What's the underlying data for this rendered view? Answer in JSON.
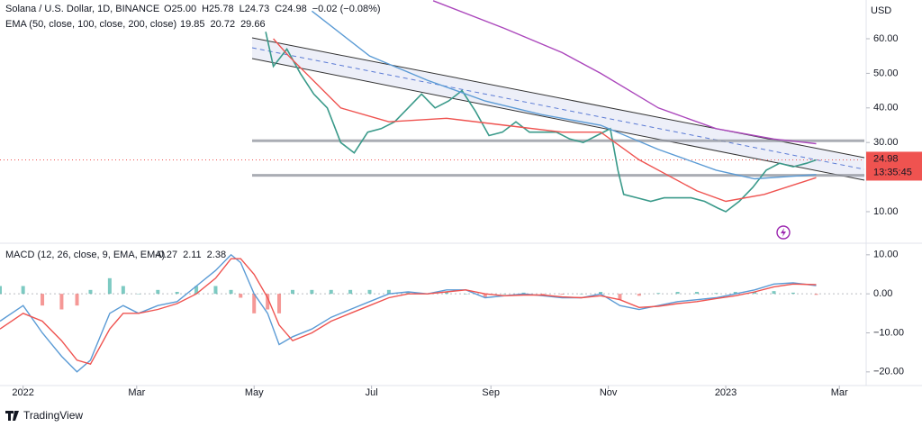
{
  "header": {
    "symbol": "Solana / U.S. Dollar, 1D, BINANCE",
    "ohlc": [
      "O25.00",
      "H25.78",
      "L24.73",
      "C24.98",
      "−0.02 (−0.08%)"
    ]
  },
  "chart_data": [
    {
      "type": "line",
      "axis_label": "USD",
      "xlim": [
        -12,
        437
      ],
      "ylim": [
        1.4,
        71.2
      ],
      "yticks": [
        {
          "value": 10,
          "label": "10.00"
        },
        {
          "value": 20,
          "label": "20.00"
        },
        {
          "value": 30,
          "label": "30.00"
        },
        {
          "value": 40,
          "label": "40.00"
        },
        {
          "value": 50,
          "label": "50.00"
        },
        {
          "value": 60,
          "label": "60.00"
        }
      ],
      "legend": {
        "label": "EMA (50, close, 100, close, 200, close)",
        "values": [
          19.85,
          20.72,
          29.66
        ]
      },
      "levels": [
        30.5,
        20.5
      ],
      "last_price": 24.98,
      "countdown": "13:35:45",
      "series": [
        {
          "color": "#3a9a8a",
          "x": [
            126,
            130,
            137,
            144,
            151,
            158,
            165,
            172,
            179,
            186,
            193,
            200,
            207,
            214,
            221,
            228,
            235,
            242,
            249,
            256,
            263,
            270,
            277,
            284,
            291,
            298,
            305,
            309,
            312,
            319,
            326,
            333,
            340,
            347,
            354,
            361,
            365,
            372,
            379,
            386,
            393,
            400,
            407,
            412
          ],
          "values": [
            62,
            52,
            57,
            50,
            44,
            40,
            30,
            27,
            33,
            34,
            36,
            40,
            44,
            40,
            42,
            45,
            39,
            32,
            33,
            36,
            33,
            33,
            33,
            31,
            30,
            32,
            34,
            22,
            15,
            14,
            13,
            14,
            14,
            14,
            13,
            11,
            10,
            13,
            17,
            22,
            24,
            23,
            24,
            24.98
          ]
        },
        {
          "color": "#ef5350",
          "x": [
            130,
            138,
            165,
            190,
            220,
            250,
            280,
            300,
            320,
            350,
            365,
            385,
            412
          ],
          "values": [
            60,
            55,
            40,
            36,
            37,
            35,
            33,
            33,
            25,
            16,
            13,
            15,
            19.85
          ]
        },
        {
          "color": "#5b9bd5",
          "x": [
            150,
            180,
            210,
            240,
            270,
            300,
            330,
            360,
            380,
            412
          ],
          "values": [
            68,
            55,
            48,
            42,
            38,
            35,
            28,
            22,
            19.5,
            20.72
          ]
        },
        {
          "color": "#ab47bc",
          "x": [
            213,
            250,
            280,
            300,
            330,
            360,
            390,
            412
          ],
          "values": [
            71,
            63,
            56,
            50,
            40,
            34,
            31,
            29.66
          ]
        }
      ]
    },
    {
      "type": "macd",
      "xlim": [
        -12,
        437
      ],
      "ylim": [
        -23.5,
        12.5
      ],
      "yticks": [
        {
          "value": 10,
          "label": "10.00"
        },
        {
          "value": 0,
          "label": "0.00"
        },
        {
          "value": -10,
          "label": "−10.00"
        },
        {
          "value": -20,
          "label": "−20.00"
        }
      ],
      "xticks": [
        {
          "value": 0,
          "label": "2022"
        },
        {
          "value": 59,
          "label": "Mar"
        },
        {
          "value": 120,
          "label": "May"
        },
        {
          "value": 181,
          "label": "Jul"
        },
        {
          "value": 243,
          "label": "Sep"
        },
        {
          "value": 304,
          "label": "Nov"
        },
        {
          "value": 365,
          "label": "2023"
        },
        {
          "value": 424,
          "label": "Mar"
        }
      ],
      "legend": {
        "label": "MACD (12, 26, close, 9, EMA, EMA)",
        "values": [
          -0.27,
          2.11,
          2.38
        ]
      },
      "x": [
        -12,
        0,
        10,
        20,
        28,
        35,
        45,
        52,
        60,
        70,
        80,
        90,
        100,
        108,
        113,
        120,
        127,
        133,
        140,
        150,
        160,
        170,
        180,
        190,
        200,
        210,
        220,
        230,
        240,
        250,
        260,
        270,
        280,
        290,
        300,
        310,
        320,
        330,
        340,
        350,
        360,
        370,
        380,
        390,
        400,
        412
      ],
      "histogram": [
        2,
        2,
        -3,
        -4,
        -3,
        1,
        4,
        2,
        0,
        1,
        0.5,
        2,
        2,
        1,
        -1,
        -5,
        -4,
        -5,
        1,
        1,
        1,
        1,
        1,
        1,
        0.5,
        0,
        0.5,
        0,
        -1,
        0,
        0.3,
        -0.2,
        -0.2,
        0,
        0.5,
        -1.5,
        -0.5,
        0.2,
        0.5,
        0.5,
        0.2,
        0.5,
        0.5,
        0.7,
        0.3,
        -0.27
      ],
      "series": [
        {
          "color": "#5b9bd5",
          "values": [
            -7,
            -3,
            -10,
            -16,
            -20,
            -17,
            -5,
            -3,
            -5,
            -3,
            -2,
            2,
            6,
            10,
            8,
            0,
            -5,
            -13,
            -11,
            -9,
            -6,
            -4,
            -2,
            0,
            0.5,
            0,
            1,
            1,
            -1,
            -0.5,
            0,
            -0.5,
            -1,
            -1,
            0,
            -3,
            -4,
            -3,
            -2,
            -1.5,
            -1,
            0,
            1,
            2.5,
            2.8,
            2.11
          ]
        },
        {
          "color": "#ef5350",
          "values": [
            -9,
            -5,
            -7,
            -12,
            -17,
            -18,
            -9,
            -5,
            -5,
            -4,
            -2.5,
            0,
            4,
            9,
            9,
            5,
            -1,
            -8,
            -12,
            -10,
            -7,
            -5,
            -3,
            -1,
            0,
            0,
            0.5,
            1,
            0,
            -0.5,
            -0.3,
            -0.3,
            -0.8,
            -1,
            -0.5,
            -1.5,
            -3.5,
            -3.2,
            -2.5,
            -2,
            -1.2,
            -0.5,
            0.5,
            1.8,
            2.5,
            2.38
          ]
        }
      ]
    }
  ],
  "footer": "TradingView"
}
